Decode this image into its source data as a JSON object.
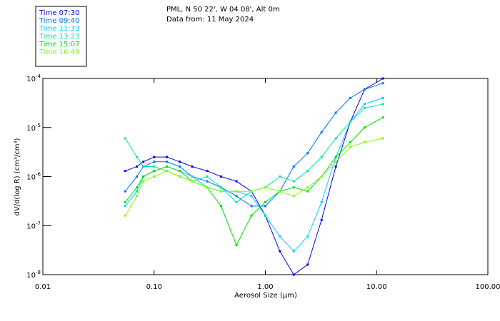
{
  "header": {
    "line1": "PML, N 50 22', W 04 08', Alt 0m",
    "line2": "Data from: 11 May 2024"
  },
  "chart_data": {
    "type": "line",
    "title": "PML, N 50 22', W 04 08', Alt 0m",
    "subtitle": "Data from: 11 May 2024",
    "xlabel": "Aerosol Size (μm)",
    "ylabel": "dV/d(log R) (cm³/cm³)",
    "xscale": "log",
    "yscale": "log",
    "xlim": [
      0.01,
      100
    ],
    "ylim": [
      1e-08,
      0.0001
    ],
    "x_ticks": [
      0.01,
      0.1,
      1,
      10,
      100
    ],
    "x_tick_labels": [
      "0.01",
      "0.10",
      "1.00",
      "10.00",
      "100.00"
    ],
    "y_ticks": [
      0.0001,
      1e-05,
      1e-06,
      1e-07,
      1e-08
    ],
    "y_tick_base": "10",
    "y_tick_exponents": [
      "-4",
      "-5",
      "-6",
      "-7",
      "-8"
    ],
    "legend_placement": "top-left",
    "x": [
      0.055,
      0.07,
      0.08,
      0.1,
      0.13,
      0.17,
      0.22,
      0.3,
      0.4,
      0.55,
      0.75,
      1.0,
      1.35,
      1.8,
      2.4,
      3.2,
      4.3,
      5.8,
      7.8,
      11.4
    ],
    "series": [
      {
        "name": "Time 07:30",
        "color": "#0000ff",
        "values": [
          1.3e-06,
          1.6e-06,
          2e-06,
          2.5e-06,
          2.5e-06,
          2e-06,
          1.6e-06,
          1.3e-06,
          1e-06,
          8e-07,
          5e-07,
          1.6e-07,
          3e-08,
          1e-08,
          1.6e-08,
          1.3e-07,
          1.6e-06,
          1.3e-05,
          6e-05,
          0.0001
        ]
      },
      {
        "name": "Time 09:40",
        "color": "#0070ff",
        "values": [
          5e-07,
          1e-06,
          1.6e-06,
          2e-06,
          2e-06,
          1.6e-06,
          1e-06,
          8e-07,
          6e-07,
          4e-07,
          2.5e-07,
          2.5e-07,
          5e-07,
          1.6e-06,
          3e-06,
          8e-06,
          2e-05,
          4e-05,
          6e-05,
          8e-05
        ]
      },
      {
        "name": "Time 11:33",
        "color": "#00d0ff",
        "values": [
          2.5e-07,
          5e-07,
          1e-06,
          1.3e-06,
          1.6e-06,
          1.3e-06,
          1e-06,
          6e-07,
          5e-07,
          5e-07,
          4e-07,
          1.6e-07,
          6e-08,
          3e-08,
          6e-08,
          3e-07,
          2.5e-06,
          1.3e-05,
          3e-05,
          4e-05
        ]
      },
      {
        "name": "Time 13:23",
        "color": "#00e8a0",
        "values": [
          6e-06,
          2.5e-06,
          1.6e-06,
          1.6e-06,
          1.3e-06,
          1e-06,
          8e-07,
          1e-06,
          6e-07,
          3e-07,
          5e-07,
          6e-07,
          1e-06,
          8e-07,
          1.3e-06,
          2.5e-06,
          6e-06,
          1.3e-05,
          2.5e-05,
          3e-05
        ]
      },
      {
        "name": "Time 15:07",
        "color": "#00e000",
        "values": [
          3e-07,
          6e-07,
          1e-06,
          1.3e-06,
          1.6e-06,
          1.3e-06,
          8e-07,
          6e-07,
          2.5e-07,
          4e-08,
          1.6e-07,
          3e-07,
          5e-07,
          6e-07,
          5e-07,
          1e-06,
          2.5e-06,
          5e-06,
          1e-05,
          1.6e-05
        ]
      },
      {
        "name": "Time 16:49",
        "color": "#80ff00",
        "values": [
          1.6e-07,
          4e-07,
          8e-07,
          1e-06,
          1.3e-06,
          1e-06,
          8e-07,
          6e-07,
          5e-07,
          5e-07,
          5e-07,
          6e-07,
          5e-07,
          4e-07,
          6e-07,
          1e-06,
          2e-06,
          4e-06,
          5e-06,
          6e-06
        ]
      }
    ]
  }
}
